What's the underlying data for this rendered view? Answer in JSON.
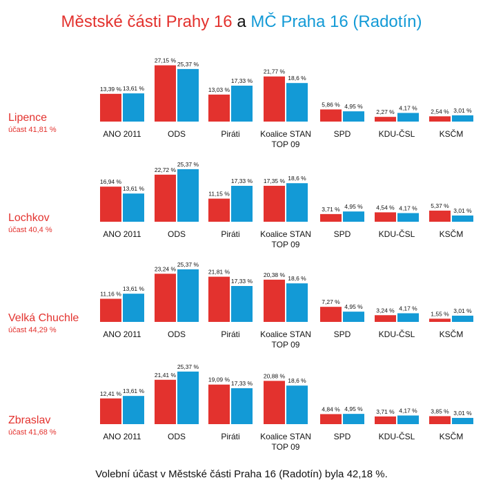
{
  "title": {
    "part1": "Městské části Prahy 16",
    "part2": "a",
    "part3": "MČ Praha 16 (Radotín)"
  },
  "colors": {
    "district": "#e3322e",
    "radotin": "#139ad6"
  },
  "footer": "Volební účast v Městské části Praha 16 (Radotín) byla 42,18 %.",
  "chart_data": [
    {
      "type": "bar",
      "district": "Lipence",
      "turnout_label": "účast 41,81 %",
      "categories": [
        "ANO 2011",
        "ODS",
        "Piráti",
        "Koalice STAN TOP 09",
        "SPD",
        "KDU-ČSL",
        "KSČM"
      ],
      "category_labels": [
        [
          "ANO 2011"
        ],
        [
          "ODS"
        ],
        [
          "Piráti"
        ],
        [
          "Koalice STAN",
          "TOP 09"
        ],
        [
          "SPD"
        ],
        [
          "KDU-ČSL"
        ],
        [
          "KSČM"
        ]
      ],
      "series": [
        {
          "values": [
            13.39,
            27.15,
            13.03,
            21.77,
            5.86,
            2.27,
            2.54
          ],
          "labels": [
            "13,39 %",
            "27,15 %",
            "13,03 %",
            "21,77 %",
            "5,86 %",
            "2,27 %",
            "2,54 %"
          ]
        },
        {
          "values": [
            13.61,
            25.37,
            17.33,
            18.6,
            4.95,
            4.17,
            3.01
          ],
          "labels": [
            "13,61 %",
            "25,37 %",
            "17,33 %",
            "18,6 %",
            "4,95 %",
            "4,17 %",
            "3,01 %"
          ]
        }
      ]
    },
    {
      "type": "bar",
      "district": "Lochkov",
      "turnout_label": "účast 40,4 %",
      "categories": [
        "ANO 2011",
        "ODS",
        "Piráti",
        "Koalice STAN TOP 09",
        "SPD",
        "KDU-ČSL",
        "KSČM"
      ],
      "category_labels": [
        [
          "ANO 2011"
        ],
        [
          "ODS"
        ],
        [
          "Piráti"
        ],
        [
          "Koalice STAN",
          "TOP 09"
        ],
        [
          "SPD"
        ],
        [
          "KDU-ČSL"
        ],
        [
          "KSČM"
        ]
      ],
      "series": [
        {
          "values": [
            16.94,
            22.72,
            11.15,
            17.35,
            3.71,
            4.54,
            5.37
          ],
          "labels": [
            "16,94 %",
            "22,72 %",
            "11,15 %",
            "17,35 %",
            "3,71 %",
            "4,54 %",
            "5,37 %"
          ]
        },
        {
          "values": [
            13.61,
            25.37,
            17.33,
            18.6,
            4.95,
            4.17,
            3.01
          ],
          "labels": [
            "13,61 %",
            "25,37 %",
            "17,33 %",
            "18,6 %",
            "4,95 %",
            "4,17 %",
            "3,01 %"
          ]
        }
      ]
    },
    {
      "type": "bar",
      "district": "Velká Chuchle",
      "turnout_label": "účast 44,29 %",
      "categories": [
        "ANO 2011",
        "ODS",
        "Piráti",
        "Koalice STAN TOP 09",
        "SPD",
        "KDU-ČSL",
        "KSČM"
      ],
      "category_labels": [
        [
          "ANO 2011"
        ],
        [
          "ODS"
        ],
        [
          "Piráti"
        ],
        [
          "Koalice STAN",
          "TOP 09"
        ],
        [
          "SPD"
        ],
        [
          "KDU-ČSL"
        ],
        [
          "KSČM"
        ]
      ],
      "series": [
        {
          "values": [
            11.16,
            23.24,
            21.81,
            20.38,
            7.27,
            3.24,
            1.55
          ],
          "labels": [
            "11,16 %",
            "23,24 %",
            "21,81 %",
            "20,38 %",
            "7,27 %",
            "3,24 %",
            "1,55 %"
          ]
        },
        {
          "values": [
            13.61,
            25.37,
            17.33,
            18.6,
            4.95,
            4.17,
            3.01
          ],
          "labels": [
            "13,61 %",
            "25,37 %",
            "17,33 %",
            "18,6 %",
            "4,95 %",
            "4,17 %",
            "3,01 %"
          ]
        }
      ]
    },
    {
      "type": "bar",
      "district": "Zbraslav",
      "turnout_label": "účast 41,68 %",
      "categories": [
        "ANO 2011",
        "ODS",
        "Piráti",
        "Koalice STAN TOP 09",
        "SPD",
        "KDU-ČSL",
        "KSČM"
      ],
      "category_labels": [
        [
          "ANO 2011"
        ],
        [
          "ODS"
        ],
        [
          "Piráti"
        ],
        [
          "Koalice STAN",
          "TOP 09"
        ],
        [
          "SPD"
        ],
        [
          "KDU-ČSL"
        ],
        [
          "KSČM"
        ]
      ],
      "series": [
        {
          "values": [
            12.41,
            21.41,
            19.09,
            20.88,
            4.84,
            3.71,
            3.85
          ],
          "labels": [
            "12,41 %",
            "21,41 %",
            "19,09 %",
            "20,88 %",
            "4,84 %",
            "3,71 %",
            "3,85 %"
          ]
        },
        {
          "values": [
            13.61,
            25.37,
            17.33,
            18.6,
            4.95,
            4.17,
            3.01
          ],
          "labels": [
            "13,61 %",
            "25,37 %",
            "17,33 %",
            "18,6 %",
            "4,95 %",
            "4,17 %",
            "3,01 %"
          ]
        }
      ]
    }
  ]
}
